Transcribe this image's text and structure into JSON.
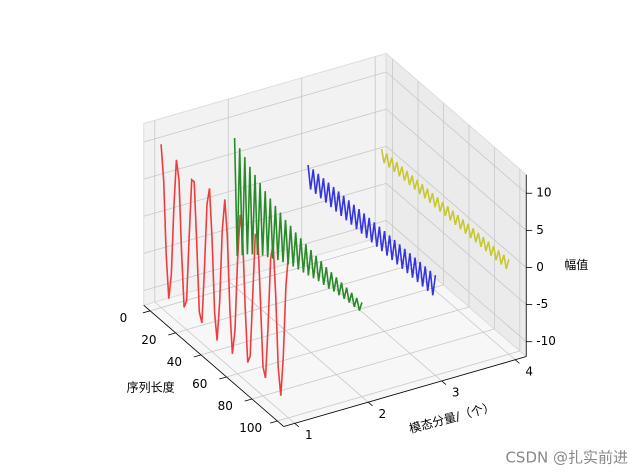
{
  "chart_data": {
    "type": "line3d",
    "x": [
      0,
      2,
      4,
      6,
      8,
      10,
      12,
      14,
      16,
      18,
      20,
      22,
      24,
      26,
      28,
      30,
      32,
      34,
      36,
      38,
      40,
      42,
      44,
      46,
      48,
      50,
      52,
      54,
      56,
      58,
      60,
      62,
      64,
      66,
      68,
      70,
      72,
      74,
      76,
      78,
      80,
      82,
      84,
      86,
      88,
      90,
      92,
      94,
      96,
      98,
      100
    ],
    "series": [
      {
        "y": 1,
        "color": "#f03c3c",
        "values": [
          10,
          5.4,
          -4.3,
          -9.9,
          -6.4,
          3.1,
          9.7,
          7.3,
          -1.9,
          -9.3,
          -8.1,
          0.6,
          8.8,
          8.8,
          0.6,
          -8.1,
          -9.3,
          -1.9,
          7.3,
          9.7,
          3.1,
          -6.4,
          -9.9,
          -4.3,
          5.4,
          10,
          5.4,
          -4.3,
          -9.9,
          -6.4,
          3.1,
          9.7,
          7.3,
          -1.9,
          -9.3,
          -8.1,
          0.6,
          8.8,
          8.8,
          0.6,
          -8.1,
          -9.3,
          -1.9,
          7.3,
          9.7,
          3.1,
          -6.4,
          -9.9,
          -4.3,
          5.4,
          10
        ]
      },
      {
        "y": 2,
        "color": "#2a8a2a",
        "values": [
          8,
          -7.6,
          7.2,
          -6.9,
          6.6,
          -6.2,
          5.9,
          -5.6,
          5.4,
          -5.1,
          4.9,
          -4.6,
          4.4,
          -4.2,
          4.0,
          -3.8,
          3.6,
          -3.4,
          3.3,
          -3.1,
          2.9,
          -2.8,
          2.7,
          -2.5,
          2.4,
          -2.3,
          2.2,
          -2.1,
          2.0,
          -1.9,
          1.8,
          -1.7,
          1.6,
          -1.5,
          1.5,
          -1.4,
          1.3,
          -1.3,
          1.2,
          -1.1,
          1.1,
          -1.0,
          1.0,
          -0.9,
          0.9,
          -0.8,
          0.8,
          -0.8,
          0.7,
          -0.7,
          0.7
        ]
      },
      {
        "y": 3,
        "color": "#3535e0",
        "values": [
          1.5,
          -1.5,
          1.5,
          -1.5,
          1.5,
          -1.5,
          1.5,
          -1.5,
          1.5,
          -1.5,
          1.5,
          -1.5,
          1.5,
          -1.5,
          1.5,
          -1.5,
          1.5,
          -1.5,
          1.5,
          -1.5,
          1.5,
          -1.5,
          1.5,
          -1.5,
          1.5,
          -1.5,
          1.5,
          -1.5,
          1.5,
          -1.5,
          1.5,
          -1.5,
          1.5,
          -1.5,
          1.5,
          -1.5,
          1.5,
          -1.5,
          1.5,
          -1.5,
          1.5,
          -1.5,
          1.5,
          -1.5,
          1.5,
          -1.5,
          1.5,
          -1.5,
          1.5,
          -1.5,
          1.5
        ]
      },
      {
        "y": 4,
        "color": "#c8c832",
        "values": [
          0.8,
          -0.8,
          0.8,
          -0.8,
          0.8,
          -0.8,
          0.8,
          -0.8,
          0.8,
          -0.8,
          0.8,
          -0.8,
          0.8,
          -0.8,
          0.8,
          -0.8,
          0.8,
          -0.8,
          0.8,
          -0.8,
          0.8,
          -0.8,
          0.8,
          -0.8,
          0.8,
          -0.8,
          0.8,
          -0.8,
          0.8,
          -0.8,
          0.8,
          -0.8,
          0.8,
          -0.8,
          0.8,
          -0.8,
          0.8,
          -0.8,
          0.8,
          -0.8,
          0.8,
          -0.8,
          0.8,
          -0.8,
          0.8,
          -0.8,
          0.8,
          -0.8,
          0.8,
          -0.8,
          0.8
        ]
      }
    ],
    "xlabel": "序列长度",
    "ylabel": "模态分量/（个）",
    "zlabel": "幅值",
    "xlim": [
      -5,
      105
    ],
    "xticks": [
      0,
      20,
      40,
      60,
      80,
      100
    ],
    "ylim": [
      0.85,
      4.15
    ],
    "yticks": [
      1,
      2,
      3,
      4
    ],
    "zlim": [
      -12,
      12.5
    ],
    "zticks": [
      -10,
      -5,
      0,
      5,
      10
    ],
    "grid": true
  },
  "watermark": "CSDN @扎实前进"
}
